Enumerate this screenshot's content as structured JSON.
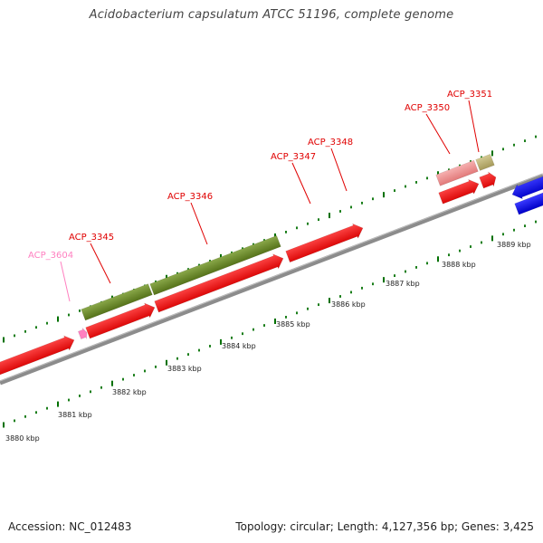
{
  "title": "Acidobacterium capsulatum ATCC 51196, complete genome",
  "footer": {
    "accession": "Accession: NC_012483",
    "topology": "Topology: circular; Length: 4,127,356 bp; Genes: 3,425"
  },
  "colors": {
    "backbone": "#8c8c8c",
    "forward_gene": "#ff0000",
    "olive_gene": "#6b8e23",
    "reverse_gene": "#0000ff",
    "label_red": "#e00000",
    "label_pink": "#ff80c0",
    "tick": "#007000"
  },
  "scale_labels": [
    "3880 kbp",
    "3881 kbp",
    "3882 kbp",
    "3883 kbp",
    "3884 kbp",
    "3885 kbp",
    "3886 kbp",
    "3887 kbp",
    "3888 kbp",
    "3889 kbp"
  ],
  "gene_labels": [
    {
      "id": "ACP_3604",
      "text": "ACP_3604",
      "color": "#ff80c0"
    },
    {
      "id": "ACP_3345",
      "text": "ACP_3345",
      "color": "#e00000"
    },
    {
      "id": "ACP_3346",
      "text": "ACP_3346",
      "color": "#e00000"
    },
    {
      "id": "ACP_3347",
      "text": "ACP_3347",
      "color": "#e00000"
    },
    {
      "id": "ACP_3348",
      "text": "ACP_3348",
      "color": "#e00000"
    },
    {
      "id": "ACP_3350",
      "text": "ACP_3350",
      "color": "#e00000"
    },
    {
      "id": "ACP_3351",
      "text": "ACP_3351",
      "color": "#e00000"
    }
  ]
}
